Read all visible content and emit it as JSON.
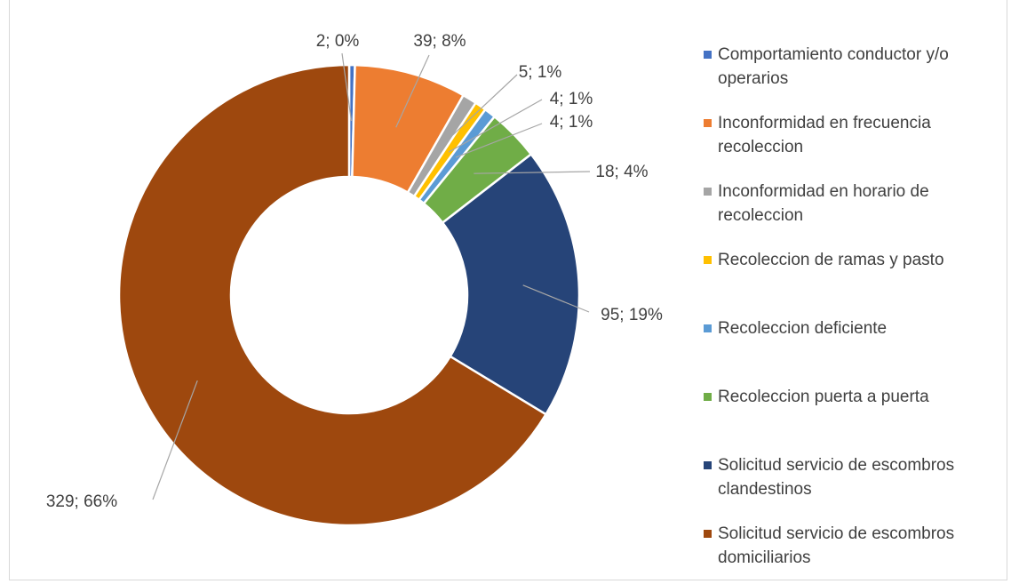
{
  "chart_data": {
    "type": "pie",
    "donut": true,
    "title": "",
    "legend_position": "right",
    "slices": [
      {
        "label": "Comportamiento conductor y/o operarios",
        "value": 2,
        "percent": "0%",
        "data_label": "2; 0%",
        "color": "#4472c4"
      },
      {
        "label": "Inconformidad en frecuencia recoleccion",
        "value": 39,
        "percent": "8%",
        "data_label": "39; 8%",
        "color": "#ed7d31"
      },
      {
        "label": "Inconformidad en horario de recoleccion",
        "value": 5,
        "percent": "1%",
        "data_label": "5; 1%",
        "color": "#a5a5a5"
      },
      {
        "label": "Recoleccion de ramas y pasto",
        "value": 4,
        "percent": "1%",
        "data_label": "4; 1%",
        "color": "#ffc000"
      },
      {
        "label": "Recoleccion deficiente",
        "value": 4,
        "percent": "1%",
        "data_label": "4; 1%",
        "color": "#5b9bd5"
      },
      {
        "label": "Recoleccion puerta a puerta",
        "value": 18,
        "percent": "4%",
        "data_label": "18; 4%",
        "color": "#70ad47"
      },
      {
        "label": "Solicitud servicio de escombros clandestinos",
        "value": 95,
        "percent": "19%",
        "data_label": "95; 19%",
        "color": "#264478"
      },
      {
        "label": "Solicitud servicio de escombros domiciliarios",
        "value": 329,
        "percent": "66%",
        "data_label": "329; 66%",
        "color": "#9e480e"
      }
    ]
  },
  "legend_items": [
    "Comportamiento conductor y/o operarios",
    "Inconformidad en frecuencia recoleccion",
    "Inconformidad en horario de recoleccion",
    "Recoleccion de ramas y pasto",
    "Recoleccion deficiente",
    "Recoleccion puerta a puerta",
    "Solicitud servicio de escombros clandestinos",
    "Solicitud servicio de escombros domiciliarios"
  ]
}
